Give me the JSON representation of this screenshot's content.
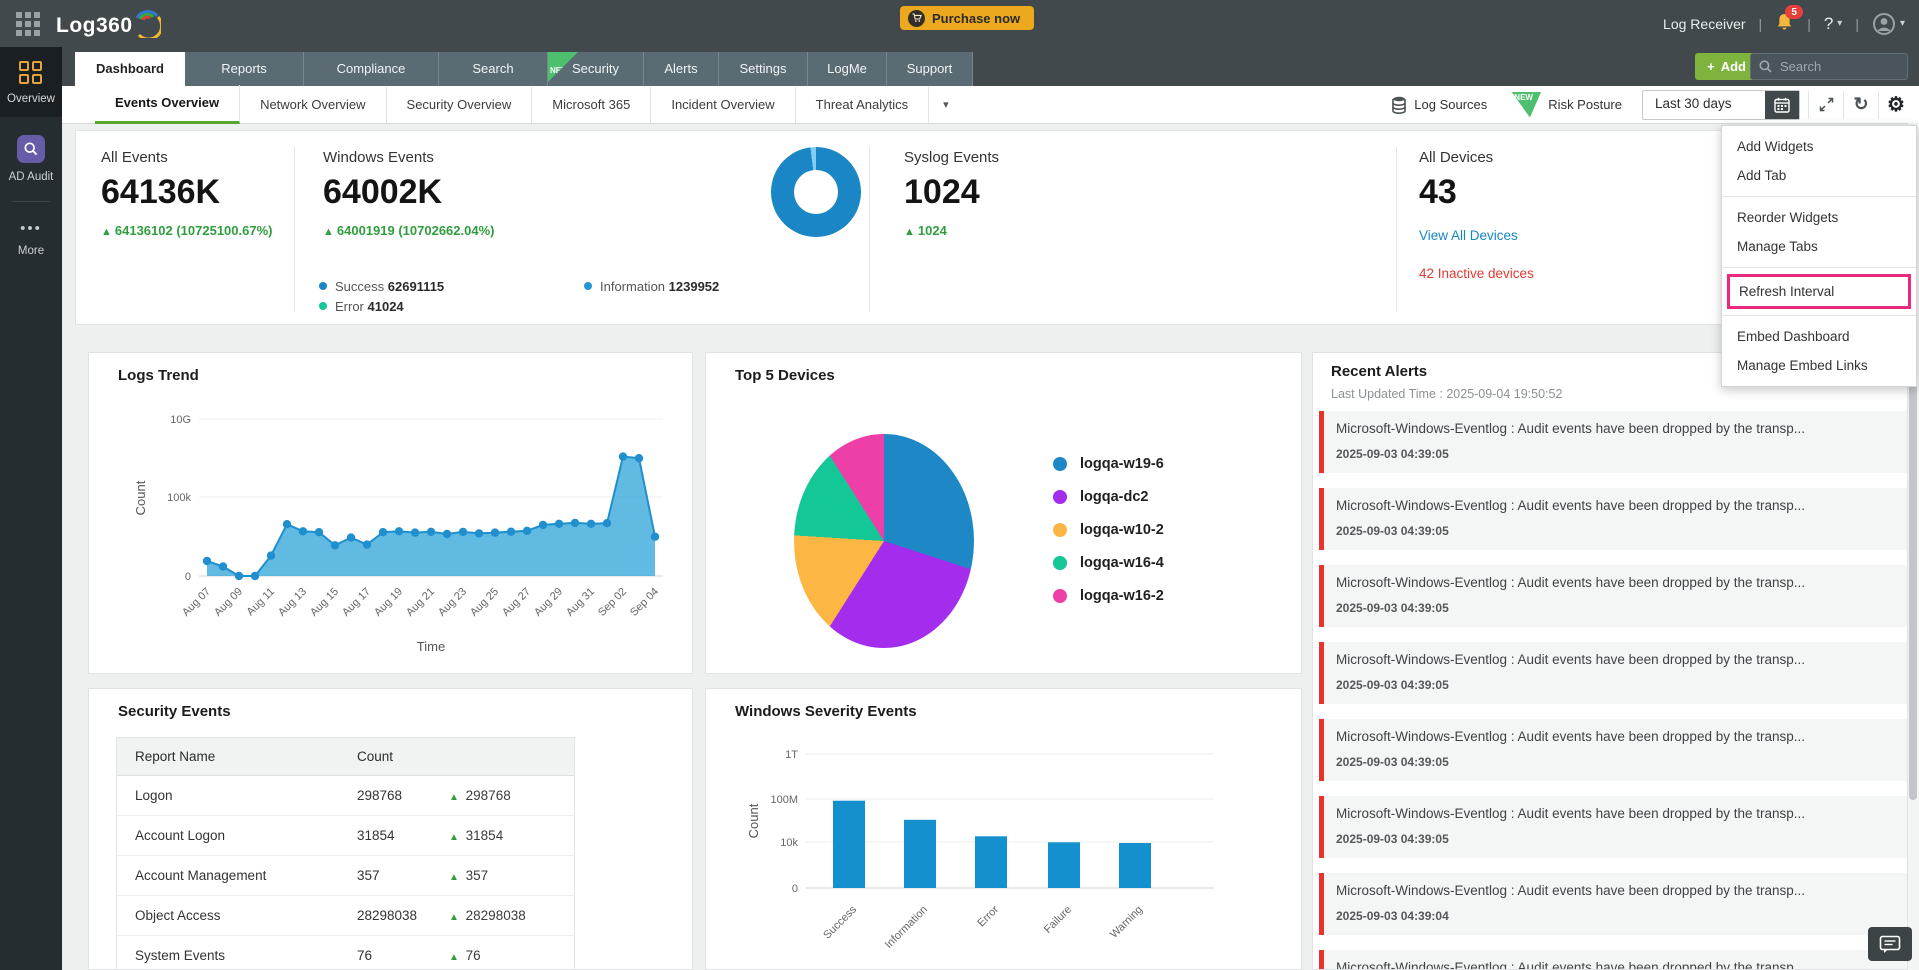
{
  "topbar": {
    "logo": "Log360",
    "purchase_label": "Purchase now",
    "log_receiver": "Log Receiver",
    "notification_count": "5",
    "help_label": "?"
  },
  "sidebar": {
    "items": [
      {
        "label": "Overview"
      },
      {
        "label": "AD Audit"
      },
      {
        "label": "More"
      }
    ]
  },
  "nav": {
    "tabs": [
      {
        "label": "Dashboard",
        "active": true
      },
      {
        "label": "Reports"
      },
      {
        "label": "Compliance"
      },
      {
        "label": "Search"
      },
      {
        "label": "Security",
        "badge": "NEW"
      },
      {
        "label": "Alerts"
      },
      {
        "label": "Settings"
      },
      {
        "label": "LogMe"
      },
      {
        "label": "Support"
      }
    ],
    "add_plus": "+",
    "add_label": "Add",
    "search_placeholder": "Search"
  },
  "subnav": {
    "tabs": [
      {
        "label": "Events Overview",
        "active": true
      },
      {
        "label": "Network Overview"
      },
      {
        "label": "Security Overview"
      },
      {
        "label": "Microsoft 365"
      },
      {
        "label": "Incident Overview"
      },
      {
        "label": "Threat Analytics"
      }
    ],
    "log_sources": "Log Sources",
    "risk_new": "NEW",
    "risk_posture": "Risk Posture",
    "date_range": "Last 30 days"
  },
  "menu": {
    "highlight_color": "#ec2a7d",
    "highlighted": "Refresh Interval",
    "groups": [
      [
        "Add Widgets",
        "Add Tab"
      ],
      [
        "Reorder Widgets",
        "Manage Tabs"
      ],
      [
        "Refresh Interval"
      ],
      [
        "Embed Dashboard",
        "Manage Embed Links"
      ]
    ]
  },
  "stats": {
    "all_events": {
      "label": "All Events",
      "value": "64136K",
      "delta": "64136102 (10725100.67%)"
    },
    "windows_events": {
      "label": "Windows Events",
      "value": "64002K",
      "delta": "64001919 (10702662.04%)",
      "legend": [
        {
          "name": "Success",
          "value": "62691115",
          "color": "#1a86c6"
        },
        {
          "name": "Information",
          "value": "1239952",
          "color": "#2496d8"
        },
        {
          "name": "Error",
          "value": "41024",
          "color": "#17c79b"
        }
      ]
    },
    "syslog_events": {
      "label": "Syslog Events",
      "value": "1024",
      "delta": "1024"
    },
    "all_devices": {
      "label": "All Devices",
      "value": "43",
      "link": "View All Devices",
      "inactive": "42 Inactive devices"
    }
  },
  "alerts": {
    "title": "Recent Alerts",
    "last_updated": "Last Updated Time : 2025-09-04 19:50:52",
    "items": [
      {
        "text": "Microsoft-Windows-Eventlog : Audit events have been dropped by the transp...",
        "time": "2025-09-03 04:39:05"
      },
      {
        "text": "Microsoft-Windows-Eventlog : Audit events have been dropped by the transp...",
        "time": "2025-09-03 04:39:05"
      },
      {
        "text": "Microsoft-Windows-Eventlog : Audit events have been dropped by the transp...",
        "time": "2025-09-03 04:39:05"
      },
      {
        "text": "Microsoft-Windows-Eventlog : Audit events have been dropped by the transp...",
        "time": "2025-09-03 04:39:05"
      },
      {
        "text": "Microsoft-Windows-Eventlog : Audit events have been dropped by the transp...",
        "time": "2025-09-03 04:39:05"
      },
      {
        "text": "Microsoft-Windows-Eventlog : Audit events have been dropped by the transp...",
        "time": "2025-09-03 04:39:05"
      },
      {
        "text": "Microsoft-Windows-Eventlog : Audit events have been dropped by the transp...",
        "time": "2025-09-03 04:39:04"
      },
      {
        "text": "Microsoft-Windows-Eventlog : Audit events have been dropped by the transp.",
        "time": ""
      }
    ]
  },
  "security_events": {
    "title": "Security Events",
    "headers": [
      "Report Name",
      "Count"
    ],
    "rows": [
      {
        "name": "Logon",
        "count": "298768",
        "delta": "298768"
      },
      {
        "name": "Account Logon",
        "count": "31854",
        "delta": "31854"
      },
      {
        "name": "Account Management",
        "count": "357",
        "delta": "357"
      },
      {
        "name": "Object Access",
        "count": "28298038",
        "delta": "28298038"
      },
      {
        "name": "System Events",
        "count": "76",
        "delta": "76"
      }
    ]
  },
  "chart_data": [
    {
      "name": "logs_trend",
      "type": "area",
      "title": "Logs Trend",
      "xlabel": "Time",
      "ylabel": "Count",
      "yticks": [
        "0",
        "100k",
        "10G"
      ],
      "y_scale": "log",
      "grid": true,
      "color": "#1f8fce",
      "x": [
        "Aug 07",
        "Aug 08",
        "Aug 09",
        "Aug 10",
        "Aug 11",
        "Aug 12",
        "Aug 13",
        "Aug 14",
        "Aug 15",
        "Aug 16",
        "Aug 17",
        "Aug 18",
        "Aug 19",
        "Aug 20",
        "Aug 21",
        "Aug 22",
        "Aug 23",
        "Aug 24",
        "Aug 25",
        "Aug 26",
        "Aug 27",
        "Aug 28",
        "Aug 29",
        "Aug 30",
        "Aug 31",
        "Sep 01",
        "Sep 02",
        "Sep 03",
        "Sep 04"
      ],
      "values": [
        9,
        4,
        1,
        1,
        20,
        2000,
        700,
        620,
        90,
        280,
        100,
        620,
        700,
        580,
        650,
        470,
        640,
        520,
        580,
        660,
        760,
        1800,
        2100,
        2400,
        2100,
        2300,
        40000000,
        32000000,
        320
      ]
    },
    {
      "name": "top5_devices",
      "type": "pie",
      "title": "Top 5 Devices",
      "legend_position": "right",
      "values_note": "estimated share (%), no labels shown in pixels",
      "series": [
        {
          "name": "logqa-w19-6",
          "value": 30,
          "color": "#1e88c7"
        },
        {
          "name": "logqa-dc2",
          "value": 29,
          "color": "#a32ced"
        },
        {
          "name": "logqa-w10-2",
          "value": 17,
          "color": "#fcb643"
        },
        {
          "name": "logqa-w16-4",
          "value": 15,
          "color": "#13c796"
        },
        {
          "name": "logqa-w16-2",
          "value": 9,
          "color": "#ee3fa8"
        }
      ]
    },
    {
      "name": "severity",
      "type": "bar",
      "title": "Windows Severity Events",
      "xlabel": "",
      "ylabel": "Count",
      "yticks": [
        "0",
        "10k",
        "100M",
        "1T"
      ],
      "y_scale": "log",
      "grid": true,
      "color": "#1590cf",
      "categories": [
        "Success",
        "Information",
        "Error",
        "Failure",
        "Warning"
      ],
      "values": [
        62691115,
        1239952,
        41024,
        12000,
        10500
      ]
    },
    {
      "name": "windows_events_donut",
      "type": "donut",
      "title": "",
      "series": [
        {
          "name": "Success",
          "value": 62691115,
          "color": "#1a86c6"
        },
        {
          "name": "Information",
          "value": 1239952,
          "color": "#85cdf0"
        },
        {
          "name": "Error",
          "value": 41024,
          "color": "#17c79b"
        }
      ]
    }
  ]
}
